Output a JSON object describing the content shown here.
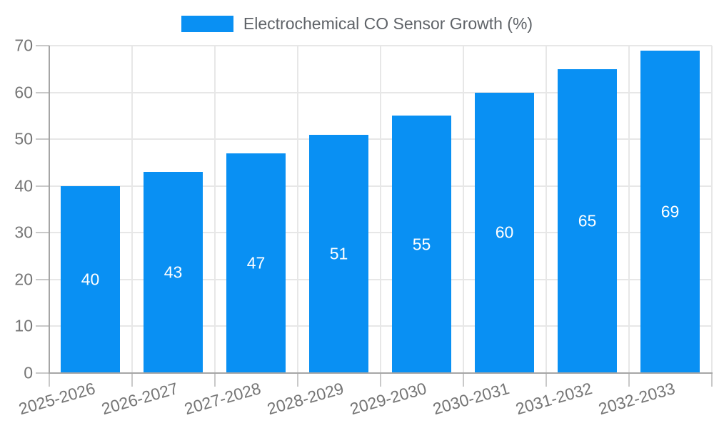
{
  "chart_data": {
    "type": "bar",
    "title": "Electrochemical CO Sensor Growth (%)",
    "categories": [
      "2025-2026",
      "2026-2027",
      "2027-2028",
      "2028-2029",
      "2029-2030",
      "2030-2031",
      "2031-2032",
      "2032-2033"
    ],
    "values": [
      40,
      43,
      47,
      51,
      55,
      60,
      65,
      69
    ],
    "yticks": [
      0,
      10,
      20,
      30,
      40,
      50,
      60,
      70
    ],
    "ylim": [
      0,
      70
    ],
    "xlabel": "",
    "ylabel": "",
    "legend_position": "top-center",
    "grid": "horizontal and vertical light gray gridlines",
    "value_labels": "white, centered inside bars",
    "colors": {
      "bar": "#0990f3",
      "value_label": "#ffffff",
      "tick_label": "#757575",
      "title_text": "#5f6368",
      "gridline": "#e7e7e7",
      "axis_line": "#a6a6a6",
      "tick_mark": "#c9c9c9",
      "background": "#ffffff"
    }
  }
}
